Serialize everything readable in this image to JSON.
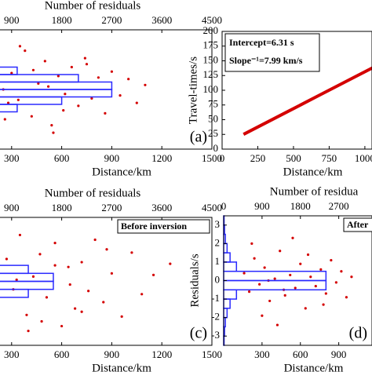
{
  "chart_data": [
    {
      "type": "scatter",
      "top_xlabel": "Number of residuals",
      "xlabel": "Distance/km",
      "panel_label": "(a)",
      "xlim": [
        0,
        1500
      ],
      "xticks": [
        300,
        600,
        900,
        1200,
        1500
      ],
      "x2lim": [
        0,
        4500
      ],
      "x2ticks": [
        900,
        1800,
        2700,
        3600,
        4500
      ],
      "ylim": [
        -4,
        4
      ],
      "color": "#d40000",
      "hist_color": "#2a2aff",
      "x": [
        50,
        120,
        180,
        220,
        260,
        300,
        340,
        380,
        420,
        460,
        500,
        540,
        580,
        620,
        660,
        700,
        740,
        780,
        820,
        860,
        900,
        950,
        1000,
        1050,
        1100,
        150,
        350,
        550,
        750,
        250,
        90,
        430,
        610,
        280,
        520
      ],
      "y": [
        1.8,
        -1.2,
        0.6,
        2.3,
        -2.0,
        1.1,
        -0.7,
        2.6,
        -1.8,
        0.4,
        1.9,
        -2.4,
        0.9,
        -0.3,
        1.5,
        -1.1,
        2.1,
        -0.6,
        0.8,
        -1.6,
        1.2,
        -0.4,
        0.7,
        -0.9,
        0.3,
        -2.6,
        2.9,
        -2.9,
        1.7,
        0.0,
        -0.3,
        1.3,
        -1.4,
        -0.9,
        0.2
      ],
      "hist_bins": [
        -1.5,
        -1,
        -0.5,
        0,
        0.5,
        1,
        1.5
      ],
      "hist_counts": [
        1000,
        1800,
        2700,
        2700,
        2100,
        1000
      ]
    },
    {
      "type": "line",
      "ylabel": "Travel-times/s",
      "xlabel": "Distance/km",
      "annotations": [
        "Intercept=6.31 s",
        "Slope⁻¹=7.99 km/s"
      ],
      "xlim": [
        0,
        1050
      ],
      "xticks": [
        0,
        250,
        500,
        750,
        1000
      ],
      "ylim": [
        0,
        200
      ],
      "yticks": [
        0,
        25,
        50,
        75,
        100,
        125,
        150,
        175,
        200
      ],
      "color": "#d40000",
      "x": [
        150,
        250,
        350,
        450,
        550,
        650,
        750,
        850,
        950,
        1050,
        1100
      ],
      "y": [
        25.1,
        37.6,
        50.1,
        62.6,
        75.1,
        87.7,
        100.2,
        112.7,
        125.2,
        137.7,
        144.0
      ]
    },
    {
      "type": "scatter",
      "top_xlabel": "Number of residuals",
      "xlabel": "Distance/km",
      "panel_label": "(c)",
      "legend": "Before inversion",
      "xlim": [
        0,
        1500
      ],
      "xticks": [
        300,
        600,
        900,
        1200,
        1500
      ],
      "x2lim": [
        0,
        4500
      ],
      "x2ticks": [
        900,
        1800,
        2700,
        3600,
        4500
      ],
      "ylim": [
        -4,
        4
      ],
      "color": "#d40000",
      "hist_color": "#2a2aff",
      "x": [
        60,
        110,
        170,
        210,
        270,
        310,
        350,
        390,
        430,
        470,
        510,
        560,
        600,
        640,
        680,
        720,
        760,
        800,
        850,
        900,
        960,
        1020,
        1080,
        1150,
        1250,
        200,
        400,
        650,
        870,
        330,
        140,
        480,
        560,
        720
      ],
      "y": [
        2.2,
        -1.5,
        0.8,
        -2.7,
        1.4,
        -0.5,
        2.9,
        -2.1,
        0.3,
        1.7,
        -1.0,
        2.4,
        -2.8,
        0.9,
        -1.7,
        1.2,
        -0.6,
        2.6,
        -1.3,
        0.5,
        -2.2,
        1.8,
        -0.8,
        0.4,
        1.1,
        3.2,
        -3.1,
        -0.2,
        2.0,
        0.1,
        -0.4,
        -2.5,
        1.0,
        -1.9
      ],
      "hist_bins": [
        -1.5,
        -1,
        -0.5,
        0,
        0.5,
        1,
        1.5
      ],
      "hist_counts": [
        500,
        1200,
        1650,
        1650,
        1200,
        600
      ]
    },
    {
      "type": "scatter",
      "top_xlabel": "Number of residua",
      "xlabel": "Distance/km",
      "ylabel": "Residuals/s",
      "panel_label": "(d)",
      "legend": "After",
      "xlim": [
        0,
        1160
      ],
      "xticks": [
        300,
        600,
        900
      ],
      "x2lim": [
        0,
        3480
      ],
      "x2ticks": [
        0,
        900,
        1800,
        2700
      ],
      "ylim": [
        -3.5,
        3.5
      ],
      "yticks": [
        -3,
        -2,
        -1,
        0,
        1,
        2,
        3
      ],
      "color": "#d40000",
      "hist_color": "#2a2aff",
      "x": [
        160,
        200,
        240,
        280,
        320,
        360,
        400,
        440,
        480,
        520,
        560,
        600,
        640,
        680,
        720,
        760,
        800,
        840,
        880,
        920,
        960,
        1000,
        220,
        300,
        420,
        540,
        660,
        780,
        350,
        470
      ],
      "y": [
        0.4,
        -0.6,
        1.2,
        -0.2,
        0.7,
        -1.1,
        0.1,
        1.6,
        -0.8,
        0.3,
        -0.4,
        0.9,
        -1.5,
        0.2,
        -0.3,
        0.6,
        -0.7,
        1.1,
        -0.1,
        0.5,
        -0.9,
        0.2,
        2.0,
        -1.9,
        -2.4,
        2.3,
        1.4,
        -1.3,
        0.0,
        -0.5
      ],
      "hist_bins": [
        -3.5,
        -3,
        -2.5,
        -2,
        -1.5,
        -1,
        -0.5,
        0,
        0.5,
        1,
        1.5,
        2,
        2.5,
        3,
        3.5
      ],
      "hist_counts": [
        10,
        20,
        40,
        80,
        150,
        300,
        2400,
        2400,
        300,
        150,
        80,
        40,
        20,
        10
      ]
    }
  ]
}
